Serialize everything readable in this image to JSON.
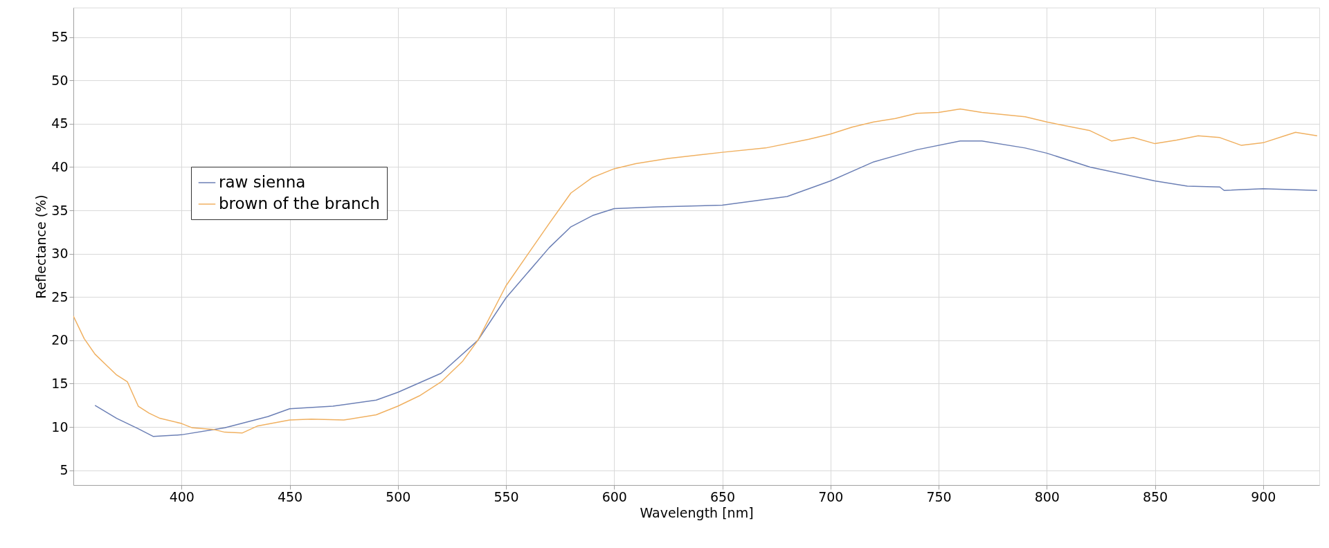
{
  "chart_data": {
    "type": "line",
    "xlabel": "Wavelength [nm]",
    "ylabel": "Reflectance (%)",
    "xlim": [
      350,
      926
    ],
    "xticks": [
      400,
      450,
      500,
      550,
      600,
      650,
      700,
      750,
      800,
      850,
      900
    ],
    "ylim": [
      3.3,
      58.4
    ],
    "yticks": [
      5,
      10,
      15,
      20,
      25,
      30,
      35,
      40,
      45,
      50,
      55
    ],
    "grid": true,
    "legend": "left",
    "marker": "none",
    "line_style": "solid",
    "series": [
      {
        "name": "raw sienna",
        "color": "#6b7fb5",
        "x": [
          360,
          370,
          380,
          387,
          400,
          420,
          440,
          450,
          470,
          490,
          500,
          520,
          537,
          550,
          570,
          580,
          590,
          600,
          620,
          650,
          680,
          700,
          720,
          740,
          760,
          770,
          790,
          800,
          820,
          850,
          865,
          880,
          882,
          900,
          925
        ],
        "values": [
          12.5,
          11.0,
          9.8,
          8.9,
          9.1,
          9.9,
          11.2,
          12.1,
          12.4,
          13.1,
          14.0,
          16.2,
          20.0,
          24.9,
          30.7,
          33.1,
          34.4,
          35.2,
          35.4,
          35.6,
          36.6,
          38.4,
          40.6,
          42.0,
          43.0,
          43.0,
          42.2,
          41.6,
          40.0,
          38.4,
          37.8,
          37.7,
          37.3,
          37.5,
          37.3
        ]
      },
      {
        "name": "brown of the branch",
        "color": "#f0b060",
        "x": [
          350,
          355,
          360,
          365,
          370,
          375,
          380,
          385,
          390,
          400,
          405,
          415,
          420,
          428,
          435,
          450,
          460,
          475,
          490,
          500,
          510,
          520,
          530,
          537,
          550,
          560,
          570,
          580,
          590,
          600,
          610,
          625,
          650,
          670,
          690,
          700,
          710,
          720,
          730,
          740,
          750,
          760,
          770,
          790,
          800,
          820,
          830,
          840,
          850,
          860,
          870,
          880,
          890,
          900,
          910,
          915,
          925
        ],
        "values": [
          22.8,
          20.2,
          18.4,
          17.2,
          16.0,
          15.2,
          12.4,
          11.6,
          11.0,
          10.4,
          9.9,
          9.7,
          9.4,
          9.3,
          10.1,
          10.8,
          10.9,
          10.8,
          11.4,
          12.4,
          13.6,
          15.2,
          17.6,
          20.0,
          26.3,
          29.9,
          33.5,
          37.0,
          38.8,
          39.8,
          40.4,
          41.0,
          41.7,
          42.2,
          43.2,
          43.8,
          44.6,
          45.2,
          45.6,
          46.2,
          46.3,
          46.7,
          46.3,
          45.8,
          45.2,
          44.2,
          43.0,
          43.4,
          42.7,
          43.1,
          43.6,
          43.4,
          42.5,
          42.8,
          43.6,
          44.0,
          43.6
        ]
      }
    ]
  }
}
